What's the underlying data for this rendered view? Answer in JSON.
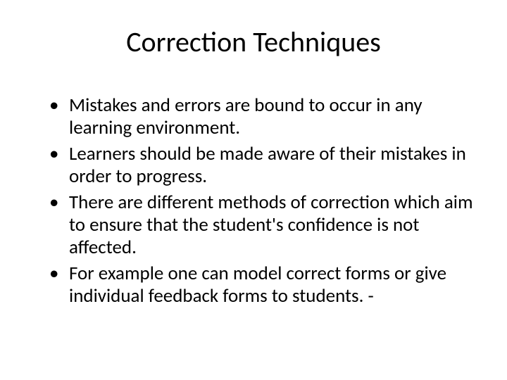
{
  "slide": {
    "title": "Correction Techniques",
    "bullets": [
      "Mistakes and errors are bound to occur in any learning environment.",
      "Learners should be made aware of their mistakes in order to progress.",
      "There are different methods of correction which aim to ensure that the student's confidence is not affected.",
      "For example one can model correct forms or give individual feedback forms to students. -"
    ],
    "colors": {
      "background": "#ffffff",
      "text": "#000000"
    },
    "typography": {
      "title_fontsize": 40,
      "body_fontsize": 27,
      "font_family": "Calibri"
    }
  }
}
